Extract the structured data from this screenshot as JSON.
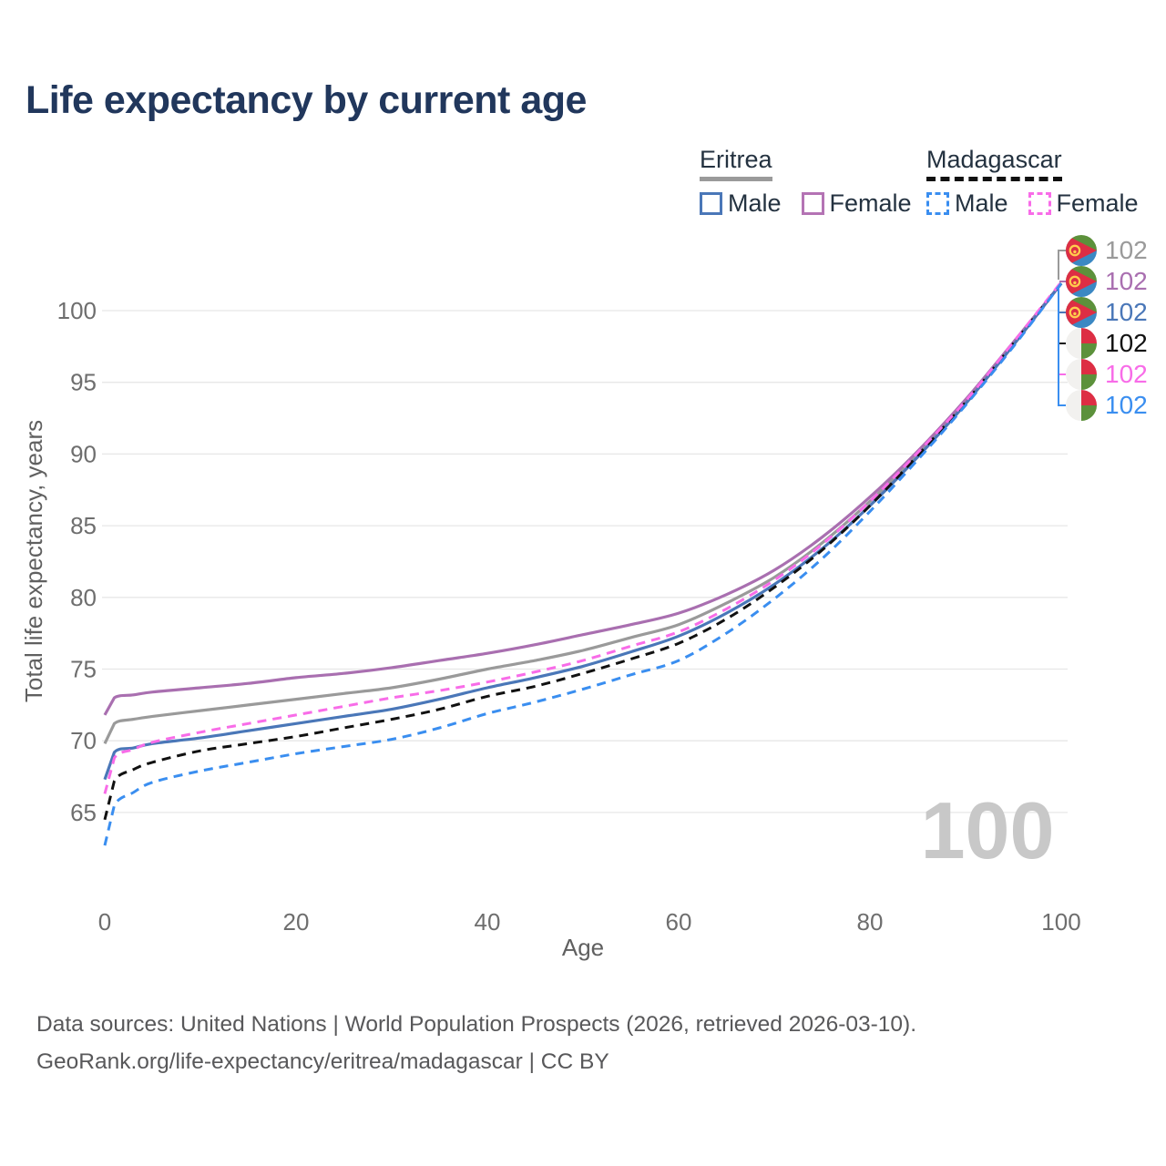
{
  "title": "Life expectancy by current age",
  "watermark": "100",
  "legend": {
    "groups": [
      {
        "label": "Eritrea",
        "underline_style": "solid",
        "underline_color": "#9a9a9a",
        "items": [
          {
            "label": "Male",
            "color": "#4a77b8",
            "dashed": false
          },
          {
            "label": "Female",
            "color": "#b473b4",
            "dashed": false
          }
        ]
      },
      {
        "label": "Madagascar",
        "underline_style": "dashed",
        "underline_color": "#111111",
        "items": [
          {
            "label": "Male",
            "color": "#3a8ef0",
            "dashed": true
          },
          {
            "label": "Female",
            "color": "#f86ce8",
            "dashed": true
          }
        ]
      }
    ]
  },
  "axes": {
    "x": {
      "label": "Age",
      "ticks": [
        0,
        20,
        40,
        60,
        80,
        100
      ],
      "range": [
        0,
        100
      ]
    },
    "y": {
      "label": "Total life expectancy, years",
      "ticks": [
        65,
        70,
        75,
        80,
        85,
        90,
        95,
        100
      ],
      "range": [
        62,
        102.5
      ]
    }
  },
  "end_labels": [
    {
      "value": "102",
      "color": "#9a9a9a",
      "flag": "eritrea",
      "series": "Eritrea"
    },
    {
      "value": "102",
      "color": "#a96fb0",
      "flag": "eritrea",
      "series": "Eritrea Female"
    },
    {
      "value": "102",
      "color": "#4a77b8",
      "flag": "eritrea",
      "series": "Eritrea Male"
    },
    {
      "value": "102",
      "color": "#111111",
      "flag": "madagascar",
      "series": "Madagascar"
    },
    {
      "value": "102",
      "color": "#f86ce8",
      "flag": "madagascar",
      "series": "Madagascar Female"
    },
    {
      "value": "102",
      "color": "#3a8ef0",
      "flag": "madagascar",
      "series": "Madagascar Male"
    }
  ],
  "footer": {
    "line1": "Data sources: United Nations | World Population Prospects (2026, retrieved 2026-03-10).",
    "line2": "GeoRank.org/life-expectancy/eritrea/madagascar | CC BY"
  },
  "chart_data": {
    "type": "line",
    "title": "Life expectancy by current age",
    "xlabel": "Age",
    "ylabel": "Total life expectancy, years",
    "xlim": [
      0,
      100
    ],
    "ylim": [
      62,
      102.5
    ],
    "grid": "horizontal",
    "legend_position": "top-right",
    "x_ages": [
      0,
      1,
      3,
      5,
      10,
      15,
      20,
      25,
      30,
      35,
      40,
      45,
      50,
      55,
      60,
      65,
      70,
      75,
      80,
      85,
      90,
      95,
      100
    ],
    "series": [
      {
        "name": "Eritrea",
        "color": "#9a9a9a",
        "dashed": false,
        "width": 3.2,
        "values": [
          69.8,
          71.2,
          71.5,
          71.7,
          72.1,
          72.5,
          72.9,
          73.3,
          73.7,
          74.3,
          75.0,
          75.6,
          76.3,
          77.2,
          78.1,
          79.6,
          81.4,
          83.8,
          86.7,
          90.0,
          93.6,
          97.7,
          101.9
        ]
      },
      {
        "name": "Eritrea Female",
        "color": "#a96fb0",
        "dashed": false,
        "width": 3.2,
        "values": [
          71.8,
          73.0,
          73.2,
          73.4,
          73.7,
          74.0,
          74.4,
          74.7,
          75.1,
          75.6,
          76.1,
          76.7,
          77.4,
          78.1,
          78.9,
          80.2,
          81.9,
          84.2,
          87.0,
          90.2,
          93.8,
          97.8,
          101.9
        ]
      },
      {
        "name": "Eritrea Male",
        "color": "#4a77b8",
        "dashed": false,
        "width": 3.2,
        "values": [
          67.3,
          69.2,
          69.5,
          69.8,
          70.2,
          70.7,
          71.2,
          71.7,
          72.2,
          72.9,
          73.7,
          74.4,
          75.2,
          76.2,
          77.3,
          78.9,
          80.9,
          83.4,
          86.4,
          89.8,
          93.5,
          97.6,
          101.9
        ]
      },
      {
        "name": "Madagascar",
        "color": "#111111",
        "dashed": true,
        "width": 3,
        "values": [
          64.5,
          67.2,
          68.0,
          68.5,
          69.3,
          69.8,
          70.3,
          70.9,
          71.5,
          72.2,
          73.1,
          73.8,
          74.7,
          75.7,
          76.8,
          78.5,
          80.7,
          83.3,
          86.4,
          89.9,
          93.6,
          97.7,
          101.9
        ]
      },
      {
        "name": "Madagascar Female",
        "color": "#f86ce8",
        "dashed": true,
        "width": 3,
        "values": [
          66.3,
          68.8,
          69.4,
          69.9,
          70.6,
          71.2,
          71.8,
          72.4,
          73.0,
          73.5,
          74.1,
          74.8,
          75.6,
          76.6,
          77.6,
          79.2,
          81.2,
          83.7,
          86.7,
          90.1,
          93.7,
          97.8,
          102.0
        ]
      },
      {
        "name": "Madagascar Male",
        "color": "#3a8ef0",
        "dashed": true,
        "width": 3,
        "values": [
          62.7,
          65.5,
          66.4,
          67.1,
          67.9,
          68.5,
          69.1,
          69.6,
          70.1,
          70.9,
          71.9,
          72.7,
          73.6,
          74.6,
          75.6,
          77.5,
          79.9,
          82.7,
          86.0,
          89.6,
          93.4,
          97.5,
          101.9
        ]
      }
    ]
  }
}
